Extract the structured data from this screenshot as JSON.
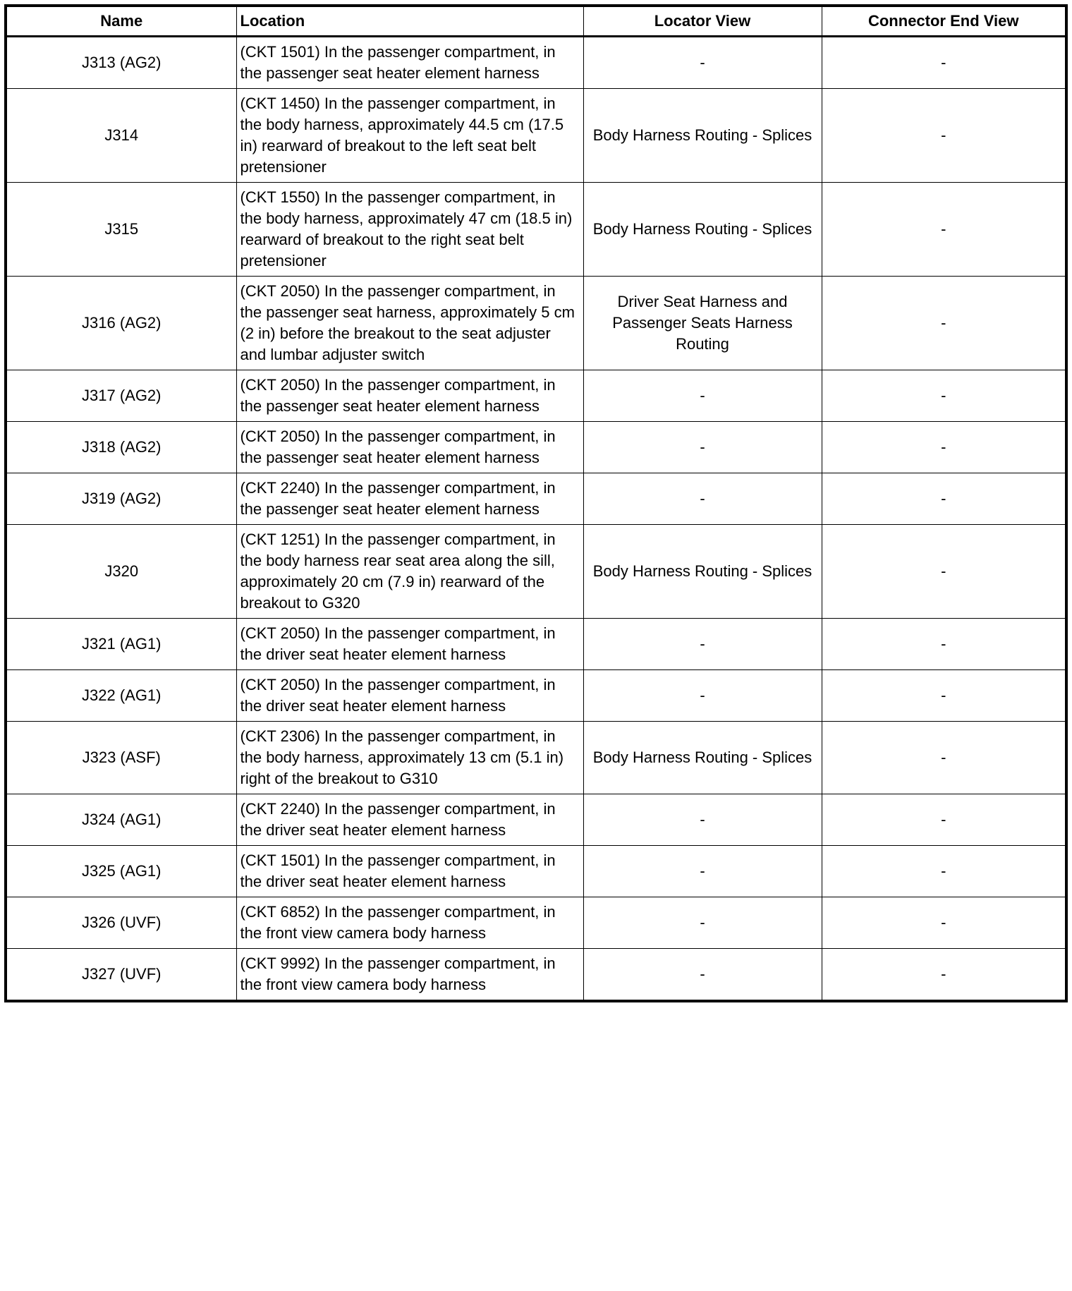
{
  "headers": {
    "name": "Name",
    "location": "Location",
    "locator_view": "Locator View",
    "connector_end_view": "Connector End View"
  },
  "rows": [
    {
      "name": "J313 (AG2)",
      "location": "(CKT 1501) In the passenger compartment, in the passenger seat heater element harness",
      "locator_view": "-",
      "connector_end_view": "-"
    },
    {
      "name": "J314",
      "location": "(CKT 1450) In the passenger compartment, in the body harness, approximately 44.5 cm (17.5 in) rearward of breakout to the left seat belt pretensioner",
      "locator_view": "Body Harness Routing - Splices",
      "connector_end_view": "-"
    },
    {
      "name": "J315",
      "location": "(CKT 1550) In the passenger compartment, in the body harness, approximately 47 cm (18.5 in) rearward of breakout to the right seat belt pretensioner",
      "locator_view": "Body Harness Routing - Splices",
      "connector_end_view": "-"
    },
    {
      "name": "J316 (AG2)",
      "location": "(CKT 2050) In the passenger compartment, in the passenger seat harness, approximately 5 cm (2 in) before the breakout to the seat adjuster and lumbar adjuster switch",
      "locator_view": "Driver Seat Harness and Passenger Seats Harness Routing",
      "connector_end_view": "-"
    },
    {
      "name": "J317 (AG2)",
      "location": "(CKT 2050) In the passenger compartment, in the passenger seat heater element harness",
      "locator_view": "-",
      "connector_end_view": "-"
    },
    {
      "name": "J318 (AG2)",
      "location": "(CKT 2050) In the passenger compartment, in the passenger seat heater element harness",
      "locator_view": "-",
      "connector_end_view": "-"
    },
    {
      "name": "J319 (AG2)",
      "location": "(CKT 2240) In the passenger compartment, in the passenger seat heater element harness",
      "locator_view": "-",
      "connector_end_view": "-"
    },
    {
      "name": "J320",
      "location": "(CKT 1251) In the passenger compartment, in the body harness rear seat area along the sill, approximately 20 cm (7.9 in) rearward of the breakout to G320",
      "locator_view": "Body Harness Routing - Splices",
      "connector_end_view": "-"
    },
    {
      "name": "J321 (AG1)",
      "location": "(CKT 2050) In the passenger compartment, in the driver seat heater element harness",
      "locator_view": "-",
      "connector_end_view": "-"
    },
    {
      "name": "J322 (AG1)",
      "location": "(CKT 2050) In the passenger compartment, in the driver seat heater element harness",
      "locator_view": "-",
      "connector_end_view": "-"
    },
    {
      "name": "J323 (ASF)",
      "location": "(CKT 2306) In the passenger compartment, in the body harness, approximately 13 cm (5.1 in) right of the breakout to G310",
      "locator_view": "Body Harness Routing - Splices",
      "connector_end_view": "-"
    },
    {
      "name": "J324 (AG1)",
      "location": "(CKT 2240) In the passenger compartment, in the driver seat heater element harness",
      "locator_view": "-",
      "connector_end_view": "-"
    },
    {
      "name": "J325 (AG1)",
      "location": "(CKT 1501) In the passenger compartment, in the driver seat heater element harness",
      "locator_view": "-",
      "connector_end_view": "-"
    },
    {
      "name": "J326 (UVF)",
      "location": "(CKT 6852) In the passenger compartment, in the front view camera body harness",
      "locator_view": "-",
      "connector_end_view": "-"
    },
    {
      "name": "J327 (UVF)",
      "location": "(CKT 9992) In the passenger compartment, in the front view camera body harness",
      "locator_view": "-",
      "connector_end_view": "-"
    }
  ]
}
